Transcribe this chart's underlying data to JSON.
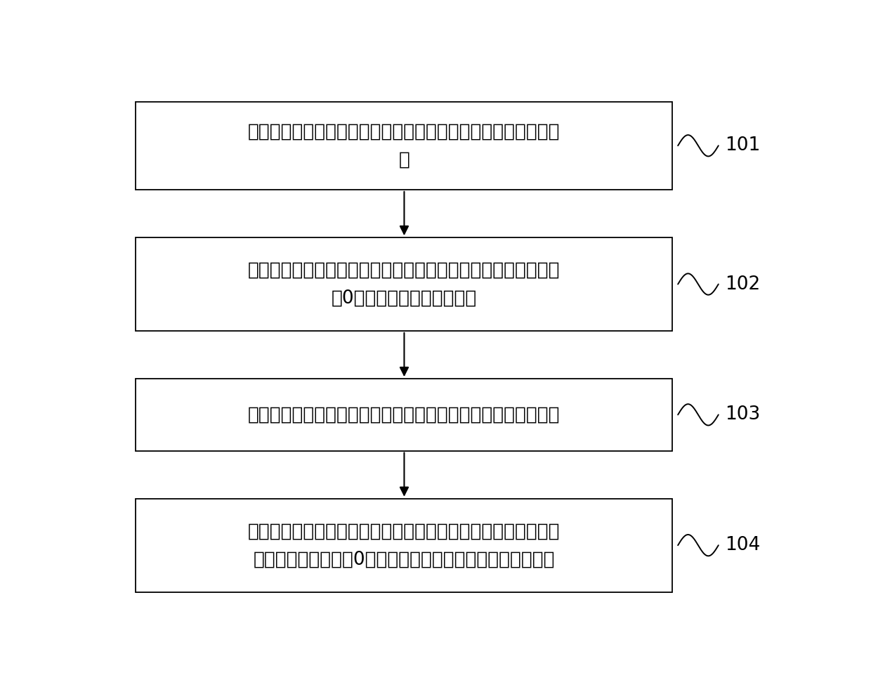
{
  "background_color": "#ffffff",
  "box_edge_color": "#000000",
  "box_fill_color": "#ffffff",
  "arrow_color": "#000000",
  "text_color": "#000000",
  "steps": [
    {
      "label": "101",
      "text": "在风力发电机机组的运行状态下，对风力发电机进行封锁偏航处\n理"
    },
    {
      "label": "102",
      "text": "在封锁偏航状态下，控制风力发电机的叶片从主控制器存储的当\n前0度位置变桨至预设角度值"
    },
    {
      "label": "103",
      "text": "在变桨至预设角度值的过程中，确定风力发电机的功率值最大值"
    },
    {
      "label": "104",
      "text": "根据功率值最大值，确定与功率值最大值对应的桨距角，并将主\n控制器存储的桨距角0度设定为与功率值最大值对应的桨距角"
    }
  ],
  "font_size": 19,
  "label_font_size": 19
}
